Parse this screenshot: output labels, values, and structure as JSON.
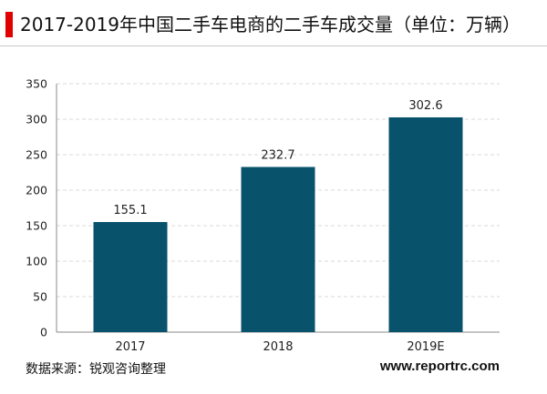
{
  "header": {
    "title": "2017-2019年中国二手车电商的二手车成交量（单位：万辆）",
    "accent_color": "#e00000"
  },
  "chart_data": {
    "type": "bar",
    "categories": [
      "2017",
      "2018",
      "2019E"
    ],
    "values": [
      155.1,
      232.7,
      302.6
    ],
    "data_labels": [
      "155.1",
      "232.7",
      "302.6"
    ],
    "ylim": [
      0,
      350
    ],
    "yticks": [
      0,
      50,
      100,
      150,
      200,
      250,
      300,
      350
    ],
    "grid": true,
    "legend": "none",
    "bar_color": "#08526b"
  },
  "footer": {
    "source": "数据来源：锐观咨询整理",
    "website": "www.reportrc.com"
  }
}
